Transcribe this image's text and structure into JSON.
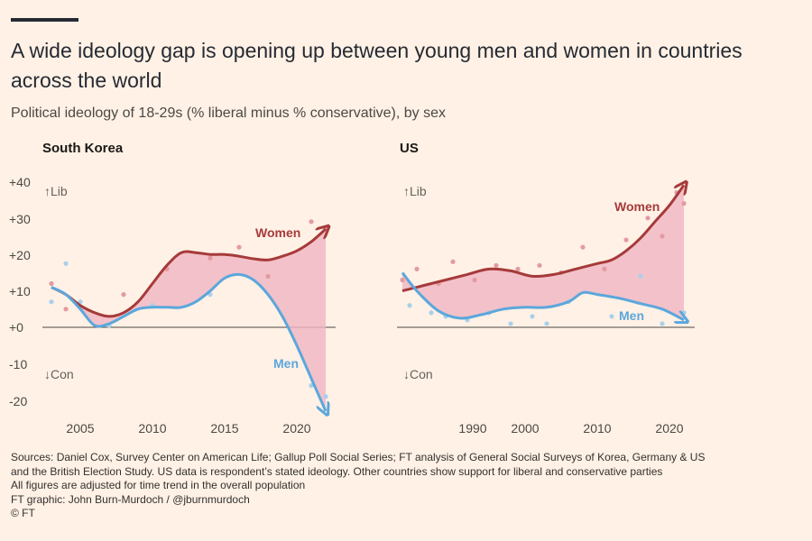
{
  "title": "A wide ideology gap is opening up between young men and women in countries across the world",
  "subtitle": "Political ideology of 18-29s (% liberal minus % conservative), by sex",
  "colors": {
    "women": "#a63a3a",
    "men": "#5ba7dc",
    "gap_fill": "#f0b5c2",
    "background": "#fff1e5"
  },
  "chart_data": [
    {
      "type": "line",
      "title": "South Korea",
      "ylabel_top": "↑Lib",
      "ylabel_bottom": "↓Con",
      "ylim": [
        -20,
        40
      ],
      "yticks": [
        "+40",
        "+30",
        "+20",
        "+10",
        "+0",
        "-10",
        "-20"
      ],
      "xticks": [
        "2005",
        "2010",
        "2015",
        "2020"
      ],
      "xlim": [
        2003,
        2022.5
      ],
      "series": [
        {
          "name": "Women",
          "x": [
            2003,
            2004,
            2005,
            2006,
            2007,
            2008,
            2009,
            2010,
            2011,
            2012,
            2013,
            2014,
            2015,
            2016,
            2017,
            2018,
            2019,
            2020,
            2021,
            2022
          ],
          "values": [
            11,
            9,
            6,
            4,
            3,
            4,
            7,
            12,
            17,
            20.5,
            20.5,
            20,
            20,
            19.5,
            18.8,
            18.5,
            19.5,
            21,
            23.5,
            27
          ]
        },
        {
          "name": "Men",
          "x": [
            2003,
            2004,
            2005,
            2006,
            2007,
            2008,
            2009,
            2010,
            2011,
            2012,
            2013,
            2014,
            2015,
            2016,
            2017,
            2018,
            2019,
            2020,
            2021,
            2022
          ],
          "values": [
            11,
            9,
            5,
            0.5,
            1,
            3,
            5,
            5.5,
            5.5,
            5.5,
            7,
            10,
            13.5,
            14.5,
            13,
            9,
            3,
            -5,
            -14,
            -23
          ]
        }
      ],
      "points": {
        "Women": [
          [
            2003,
            12
          ],
          [
            2004,
            5
          ],
          [
            2008,
            9
          ],
          [
            2011,
            16
          ],
          [
            2014,
            19
          ],
          [
            2016,
            22
          ],
          [
            2018,
            14
          ],
          [
            2021,
            29
          ],
          [
            2022,
            27
          ]
        ],
        "Men": [
          [
            2003,
            7
          ],
          [
            2004,
            17.5
          ],
          [
            2005,
            7
          ],
          [
            2007,
            0.5
          ],
          [
            2010,
            6
          ],
          [
            2014,
            9
          ],
          [
            2021,
            -16
          ],
          [
            2022,
            -19
          ]
        ]
      }
    },
    {
      "type": "line",
      "title": "US",
      "ylabel_top": "↑Lib",
      "ylabel_bottom": "↓Con",
      "ylim": [
        -20,
        40
      ],
      "xticks": [
        "1990",
        "2000",
        "2010",
        "2020"
      ],
      "xlim": [
        1983,
        2022.5
      ],
      "series": [
        {
          "name": "Women",
          "x": [
            1983,
            1986,
            1989,
            1992,
            1995,
            1998,
            2001,
            2004,
            2007,
            2010,
            2012,
            2014,
            2016,
            2018,
            2020,
            2022
          ],
          "values": [
            10,
            11.5,
            13,
            14.5,
            16,
            15.5,
            14,
            14.5,
            16,
            17.5,
            18.5,
            21,
            24.5,
            29,
            33.5,
            39
          ]
        },
        {
          "name": "Men",
          "x": [
            1983,
            1985,
            1988,
            1991,
            1994,
            1997,
            2000,
            2003,
            2006,
            2008,
            2010,
            2013,
            2016,
            2019,
            2022
          ],
          "values": [
            15,
            10,
            4.5,
            2.5,
            3.5,
            5,
            5.5,
            5.5,
            7,
            9.5,
            9,
            8,
            6.5,
            5,
            2
          ]
        }
      ],
      "points": {
        "Women": [
          [
            1983,
            13
          ],
          [
            1985,
            16
          ],
          [
            1988,
            12
          ],
          [
            1990,
            18
          ],
          [
            1993,
            13
          ],
          [
            1996,
            17
          ],
          [
            1999,
            16
          ],
          [
            2002,
            17
          ],
          [
            2005,
            15
          ],
          [
            2008,
            22
          ],
          [
            2011,
            16
          ],
          [
            2014,
            24
          ],
          [
            2017,
            30
          ],
          [
            2019,
            25
          ],
          [
            2021,
            37
          ],
          [
            2022,
            34
          ]
        ],
        "Men": [
          [
            1984,
            6
          ],
          [
            1987,
            4
          ],
          [
            1989,
            3
          ],
          [
            1992,
            2
          ],
          [
            1995,
            4
          ],
          [
            1998,
            1
          ],
          [
            2001,
            3
          ],
          [
            2003,
            1
          ],
          [
            2006,
            7
          ],
          [
            2012,
            3
          ],
          [
            2016,
            14
          ],
          [
            2019,
            1
          ],
          [
            2022,
            4
          ]
        ]
      }
    }
  ],
  "sources": [
    "Sources: Daniel Cox, Survey Center on American Life; Gallup Poll Social Series; FT analysis of General Social Surveys of Korea, Germany & US",
    "and the British Election Study. US data is respondent’s stated ideology. Other countries show support for liberal and conservative parties",
    "All figures are adjusted for time trend in the overall population",
    "FT graphic: John Burn-Murdoch / @jburnmurdoch",
    "© FT"
  ]
}
